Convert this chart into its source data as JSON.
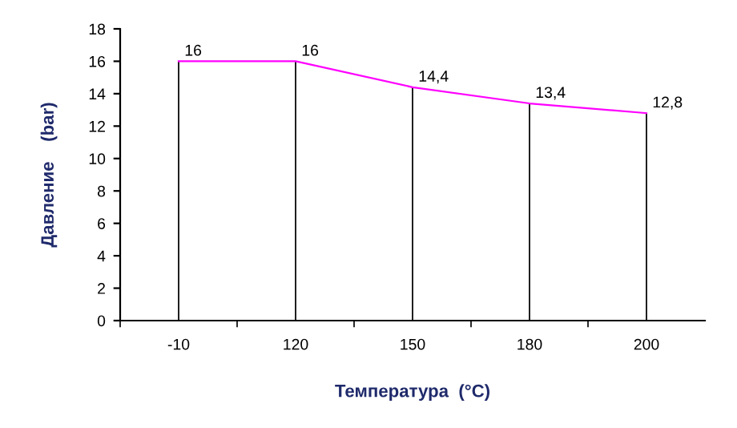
{
  "chart_data": {
    "type": "line",
    "xlabel": "Температура  (°C)",
    "ylabel": "Давление    (bar)",
    "categories": [
      "-10",
      "120",
      "150",
      "180",
      "200"
    ],
    "series": [
      {
        "type": "bar",
        "color": "#000000",
        "values": [
          16,
          16,
          14.4,
          13.4,
          12.8
        ]
      },
      {
        "color": "#ff00ff",
        "values": [
          16,
          16,
          14.4,
          13.4,
          12.8
        ],
        "value_labels": [
          "16",
          "16",
          "14,4",
          "13,4",
          "12,8"
        ]
      }
    ],
    "ylim": [
      0,
      18
    ],
    "yticks": [
      0,
      2,
      4,
      6,
      8,
      10,
      12,
      14,
      16,
      18
    ],
    "grid": false,
    "marker": "none"
  }
}
